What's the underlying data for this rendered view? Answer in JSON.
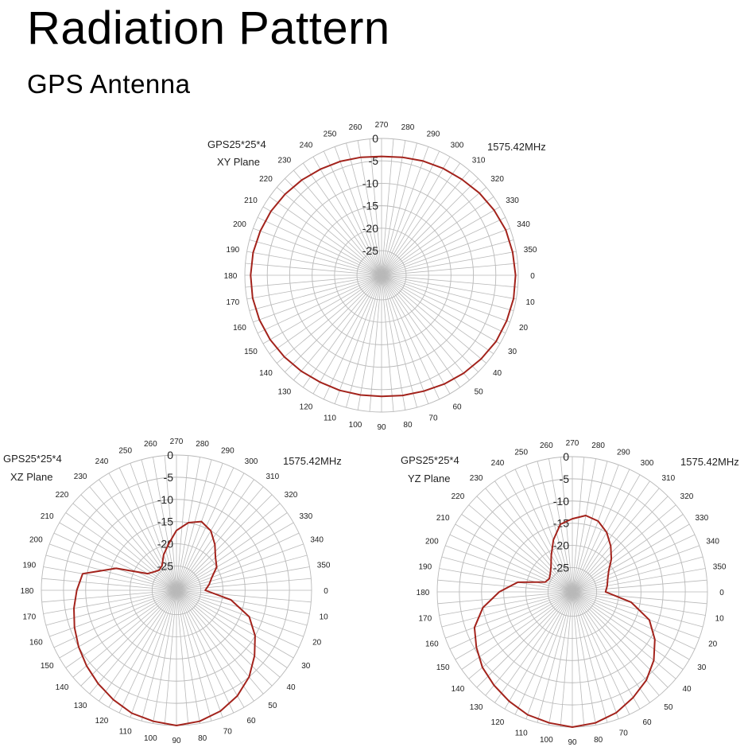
{
  "header": {
    "title": "Radiation Pattern",
    "subtitle": "GPS Antenna"
  },
  "chart_data": [
    {
      "type": "polar-line",
      "model": "GPS25*25*4",
      "plane": "XY Plane",
      "frequency": "1575.42MHz",
      "radial_ticks": [
        "0",
        "-5",
        "-10",
        "-15",
        "-20",
        "-25"
      ],
      "angle_labels": [
        0,
        10,
        20,
        30,
        40,
        50,
        60,
        70,
        80,
        90,
        100,
        110,
        120,
        130,
        140,
        150,
        160,
        170,
        180,
        190,
        200,
        210,
        220,
        230,
        240,
        250,
        260,
        270,
        280,
        290,
        300,
        310,
        320,
        330,
        340,
        350
      ],
      "series_color": "#a3231c",
      "angles": [
        0,
        10,
        20,
        30,
        40,
        50,
        60,
        70,
        80,
        90,
        100,
        110,
        120,
        130,
        140,
        150,
        160,
        170,
        180,
        190,
        200,
        210,
        220,
        230,
        240,
        250,
        260,
        270,
        280,
        290,
        300,
        310,
        320,
        330,
        340,
        350
      ],
      "values": [
        -0.6,
        -0.6,
        -0.8,
        -1.0,
        -1.5,
        -2.0,
        -2.5,
        -3.0,
        -3.3,
        -3.5,
        -3.4,
        -3.2,
        -3.0,
        -2.6,
        -2.2,
        -1.8,
        -1.5,
        -1.3,
        -1.3,
        -1.4,
        -1.7,
        -2.0,
        -2.4,
        -2.8,
        -3.2,
        -3.5,
        -3.8,
        -4.0,
        -3.8,
        -3.4,
        -3.0,
        -2.6,
        -2.0,
        -1.5,
        -1.0,
        -0.8
      ]
    },
    {
      "type": "polar-line",
      "model": "GPS25*25*4",
      "plane": "XZ Plane",
      "frequency": "1575.42MHz",
      "radial_ticks": [
        "0",
        "-5",
        "-10",
        "-15",
        "-20",
        "-25"
      ],
      "angle_labels": [
        0,
        10,
        20,
        30,
        40,
        50,
        60,
        70,
        80,
        90,
        100,
        110,
        120,
        130,
        140,
        150,
        160,
        170,
        180,
        190,
        200,
        210,
        220,
        230,
        240,
        250,
        260,
        270,
        280,
        290,
        300,
        310,
        320,
        330,
        340,
        350
      ],
      "series_color": "#a3231c",
      "angles": [
        0,
        10,
        20,
        30,
        40,
        50,
        60,
        70,
        80,
        90,
        100,
        110,
        120,
        130,
        140,
        150,
        160,
        170,
        180,
        190,
        200,
        210,
        220,
        230,
        240,
        250,
        260,
        270,
        280,
        290,
        300,
        310,
        320,
        330,
        340,
        350
      ],
      "values": [
        -24,
        -18,
        -13,
        -10,
        -7.5,
        -5,
        -3,
        -1.5,
        -0.5,
        0,
        -0.5,
        -1,
        -2,
        -3,
        -4,
        -5,
        -6,
        -7,
        -8,
        -9,
        -16,
        -23,
        -24,
        -24.5,
        -24,
        -22,
        -20,
        -17,
        -15,
        -14,
        -15,
        -17,
        -19,
        -20,
        -22,
        -23
      ]
    },
    {
      "type": "polar-line",
      "model": "GPS25*25*4",
      "plane": "YZ Plane",
      "frequency": "1575.42MHz",
      "radial_ticks": [
        "0",
        "-5",
        "-10",
        "-15",
        "-20",
        "-25"
      ],
      "angle_labels": [
        0,
        10,
        20,
        30,
        40,
        50,
        60,
        70,
        80,
        90,
        100,
        110,
        120,
        130,
        140,
        150,
        160,
        170,
        180,
        190,
        200,
        210,
        220,
        230,
        240,
        250,
        260,
        270,
        280,
        290,
        300,
        310,
        320,
        330,
        340,
        350
      ],
      "series_color": "#a3231c",
      "angles": [
        0,
        10,
        20,
        30,
        40,
        50,
        60,
        70,
        80,
        90,
        100,
        110,
        120,
        130,
        140,
        150,
        160,
        170,
        180,
        190,
        200,
        210,
        220,
        230,
        240,
        250,
        260,
        270,
        280,
        290,
        300,
        310,
        320,
        330,
        340,
        350
      ],
      "values": [
        -23,
        -17,
        -12,
        -9,
        -6.5,
        -4.5,
        -3,
        -1.5,
        -0.5,
        0,
        -0.5,
        -1,
        -2,
        -3,
        -4,
        -5.5,
        -7,
        -10,
        -14,
        -18,
        -24,
        -24.5,
        -24,
        -23,
        -21,
        -18,
        -15,
        -14,
        -13,
        -13.5,
        -15,
        -17,
        -19,
        -21,
        -22,
        -22.5
      ]
    }
  ]
}
